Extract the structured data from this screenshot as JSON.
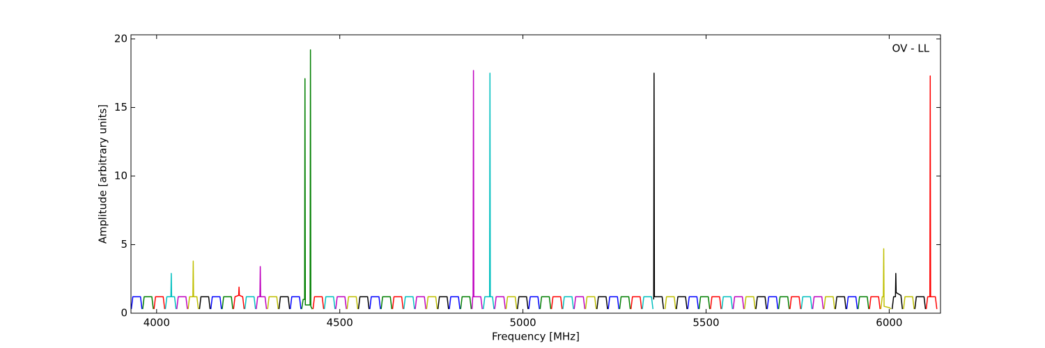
{
  "chart_data": {
    "type": "line",
    "annotation": "OV - LL",
    "xlabel": "Frequency [MHz]",
    "ylabel": "Amplitude [arbitrary units]",
    "xlim": [
      3930,
      6140
    ],
    "ylim": [
      0,
      20.3
    ],
    "xticks": [
      4000,
      4500,
      5000,
      5500,
      6000
    ],
    "yticks": [
      0,
      5,
      10,
      15,
      20
    ],
    "series": [
      {
        "color": "#0000ff",
        "x": [
          3931,
          3935,
          3956,
          3960,
          null,
          4148,
          4152,
          4173,
          4177,
          null,
          4365,
          4369,
          4390,
          4394,
          null,
          4582,
          4586,
          4607,
          4611,
          null,
          4799,
          4803,
          4824,
          4828,
          null,
          5016,
          5020,
          5041,
          5045,
          null,
          5233,
          5237,
          5258,
          5262,
          null,
          5450,
          5454,
          5475,
          5479,
          null,
          5667,
          5671,
          5692,
          5696,
          null,
          5884,
          5888,
          5909,
          5913
        ],
        "values": [
          0.3,
          1.2,
          1.2,
          0.3,
          null,
          0.3,
          1.2,
          1.2,
          0.3,
          null,
          0.3,
          1.2,
          1.2,
          0.3,
          null,
          0.3,
          1.2,
          1.2,
          0.3,
          null,
          0.3,
          1.2,
          1.2,
          0.3,
          null,
          0.3,
          1.2,
          1.2,
          0.3,
          null,
          0.3,
          1.2,
          1.2,
          0.3,
          null,
          0.3,
          1.2,
          1.2,
          0.3,
          null,
          0.3,
          1.2,
          1.2,
          0.3,
          null,
          0.3,
          1.2,
          1.2,
          0.3
        ]
      },
      {
        "color": "#007f00",
        "x": [
          3962,
          3966,
          3987,
          3991,
          null,
          4179,
          4183,
          4204,
          4208,
          null,
          4396,
          4400,
          4404,
          4405,
          4406,
          4419,
          4420,
          4421,
          4425,
          null,
          4613,
          4617,
          4638,
          4642,
          null,
          4830,
          4834,
          4855,
          4859,
          null,
          5047,
          5051,
          5072,
          5076,
          null,
          5264,
          5268,
          5289,
          5293,
          null,
          5481,
          5485,
          5506,
          5510,
          null,
          5698,
          5702,
          5723,
          5727,
          null,
          5915,
          5919,
          5940,
          5944
        ],
        "values": [
          0.3,
          1.2,
          1.2,
          0.3,
          null,
          0.3,
          1.2,
          1.2,
          0.3,
          null,
          0.3,
          1.0,
          1.0,
          17.1,
          0.6,
          0.6,
          19.2,
          0.5,
          0.3,
          null,
          0.3,
          1.2,
          1.2,
          0.3,
          null,
          0.3,
          1.2,
          1.2,
          0.3,
          null,
          0.3,
          1.2,
          1.2,
          0.3,
          null,
          0.3,
          1.2,
          1.2,
          0.3,
          null,
          0.3,
          1.2,
          1.2,
          0.3,
          null,
          0.3,
          1.2,
          1.2,
          0.3,
          null,
          0.3,
          1.2,
          1.2,
          0.3
        ]
      },
      {
        "color": "#ff0000",
        "x": [
          3993,
          3997,
          4018,
          4022,
          null,
          4210,
          4214,
          4224,
          4225,
          4226,
          4235,
          4239,
          null,
          4427,
          4431,
          4452,
          4456,
          null,
          4644,
          4648,
          4669,
          4673,
          null,
          5078,
          5082,
          5103,
          5107,
          null,
          5295,
          5299,
          5320,
          5324,
          null,
          5512,
          5516,
          5537,
          5541,
          null,
          5729,
          5733,
          5754,
          5758,
          null,
          5946,
          5950,
          5971,
          5975,
          null,
          6101,
          6105,
          6111,
          6112,
          6113,
          6126,
          6130
        ],
        "values": [
          0.3,
          1.2,
          1.2,
          0.3,
          null,
          0.3,
          1.2,
          1.3,
          1.9,
          1.3,
          1.2,
          0.3,
          null,
          0.3,
          1.2,
          1.2,
          0.3,
          null,
          0.3,
          1.2,
          1.2,
          0.3,
          null,
          0.3,
          1.2,
          1.2,
          0.3,
          null,
          0.3,
          1.2,
          1.2,
          0.3,
          null,
          0.3,
          1.2,
          1.2,
          0.3,
          null,
          0.3,
          1.2,
          1.2,
          0.3,
          null,
          0.3,
          1.2,
          1.2,
          0.3,
          null,
          0.3,
          1.2,
          1.2,
          17.3,
          1.2,
          1.2,
          0.3
        ]
      },
      {
        "color": "#00bfbf",
        "x": [
          4024,
          4028,
          4039,
          4040,
          4041,
          4049,
          4053,
          null,
          4241,
          4245,
          4266,
          4270,
          null,
          4458,
          4462,
          4483,
          4487,
          null,
          4675,
          4679,
          4700,
          4704,
          null,
          4892,
          4896,
          4909,
          4910,
          4911,
          4917,
          4921,
          null,
          5109,
          5113,
          5134,
          5138,
          null,
          5326,
          5330,
          5351,
          5355,
          null,
          5543,
          5547,
          5568,
          5572,
          null,
          5760,
          5764,
          5785,
          5789
        ],
        "values": [
          0.3,
          1.2,
          1.2,
          2.9,
          1.2,
          1.2,
          0.3,
          null,
          0.3,
          1.2,
          1.2,
          0.3,
          null,
          0.3,
          1.2,
          1.2,
          0.3,
          null,
          0.3,
          1.2,
          1.2,
          0.3,
          null,
          0.3,
          1.2,
          1.2,
          17.5,
          1.2,
          1.2,
          0.3,
          null,
          0.3,
          1.2,
          1.2,
          0.3,
          null,
          0.3,
          1.2,
          1.2,
          0.3,
          null,
          0.3,
          1.2,
          1.2,
          0.3,
          null,
          0.3,
          1.2,
          1.2,
          0.3
        ]
      },
      {
        "color": "#bf00bf",
        "x": [
          4055,
          4059,
          4080,
          4084,
          null,
          4272,
          4276,
          4282,
          4283,
          4284,
          4296,
          4300,
          null,
          4489,
          4493,
          4514,
          4518,
          null,
          4706,
          4710,
          4731,
          4735,
          null,
          4861,
          4863,
          4864,
          4865,
          4866,
          4885,
          4889,
          null,
          4923,
          4927,
          4948,
          4952,
          null,
          5140,
          5144,
          5165,
          5169,
          null,
          5574,
          5578,
          5599,
          5603,
          null,
          5791,
          5795,
          5816,
          5820
        ],
        "values": [
          0.3,
          1.2,
          1.2,
          0.3,
          null,
          0.3,
          1.2,
          1.2,
          3.4,
          1.2,
          1.2,
          0.3,
          null,
          0.3,
          1.2,
          1.2,
          0.3,
          null,
          0.3,
          1.2,
          1.2,
          0.3,
          null,
          0.3,
          1.2,
          1.2,
          17.7,
          1.2,
          1.2,
          0.3,
          null,
          0.3,
          1.2,
          1.2,
          0.3,
          null,
          0.3,
          1.2,
          1.2,
          0.3,
          null,
          0.3,
          1.2,
          1.2,
          0.3,
          null,
          0.3,
          1.2,
          1.2,
          0.3
        ]
      },
      {
        "color": "#bfbf00",
        "x": [
          4086,
          4090,
          4099,
          4100,
          4101,
          4110,
          4114,
          null,
          4303,
          4307,
          4328,
          4332,
          null,
          4520,
          4524,
          4545,
          4549,
          null,
          4737,
          4741,
          4762,
          4766,
          null,
          4954,
          4958,
          4979,
          4983,
          null,
          5171,
          5175,
          5196,
          5200,
          null,
          5388,
          5392,
          5413,
          5417,
          null,
          5605,
          5609,
          5630,
          5634,
          null,
          5822,
          5826,
          5847,
          5851,
          null,
          5977,
          5981,
          5984,
          5985,
          5986,
          6001,
          6005,
          null,
          6039,
          6043,
          6064,
          6068
        ],
        "values": [
          0.3,
          1.2,
          1.2,
          3.8,
          1.2,
          1.2,
          0.3,
          null,
          0.3,
          1.2,
          1.2,
          0.3,
          null,
          0.3,
          1.2,
          1.2,
          0.3,
          null,
          0.3,
          1.2,
          1.2,
          0.3,
          null,
          0.3,
          1.2,
          1.2,
          0.3,
          null,
          0.3,
          1.2,
          1.2,
          0.3,
          null,
          0.3,
          1.2,
          1.2,
          0.3,
          null,
          0.3,
          1.2,
          1.2,
          0.3,
          null,
          0.3,
          1.2,
          1.2,
          0.3,
          null,
          0.3,
          1.2,
          1.2,
          4.7,
          0.5,
          0.4,
          0.3,
          null,
          0.3,
          1.2,
          1.2,
          0.3
        ]
      },
      {
        "color": "#000000",
        "x": [
          4117,
          4121,
          4142,
          4146,
          null,
          4334,
          4338,
          4359,
          4363,
          null,
          4551,
          4555,
          4576,
          4580,
          null,
          4768,
          4772,
          4793,
          4797,
          null,
          4985,
          4989,
          5010,
          5014,
          null,
          5202,
          5206,
          5227,
          5231,
          null,
          5357,
          5358,
          5359,
          5363,
          5380,
          5384,
          null,
          5419,
          5423,
          5444,
          5448,
          null,
          5636,
          5640,
          5661,
          5665,
          null,
          5853,
          5857,
          5878,
          5882,
          null,
          6008,
          6012,
          6017,
          6018,
          6019,
          6032,
          6036,
          null,
          6070,
          6074,
          6095,
          6099
        ],
        "values": [
          0.3,
          1.2,
          1.2,
          0.3,
          null,
          0.3,
          1.2,
          1.2,
          0.3,
          null,
          0.3,
          1.2,
          1.2,
          0.3,
          null,
          0.3,
          1.2,
          1.2,
          0.3,
          null,
          0.3,
          1.2,
          1.2,
          0.3,
          null,
          0.3,
          1.2,
          1.2,
          0.3,
          null,
          1.0,
          17.5,
          1.2,
          1.2,
          1.2,
          0.3,
          null,
          0.3,
          1.2,
          1.2,
          0.3,
          null,
          0.3,
          1.2,
          1.2,
          0.3,
          null,
          0.3,
          1.2,
          1.2,
          0.3,
          null,
          0.3,
          1.2,
          1.2,
          2.9,
          1.5,
          1.3,
          0.3,
          null,
          0.3,
          1.2,
          1.2,
          0.3
        ]
      }
    ]
  }
}
